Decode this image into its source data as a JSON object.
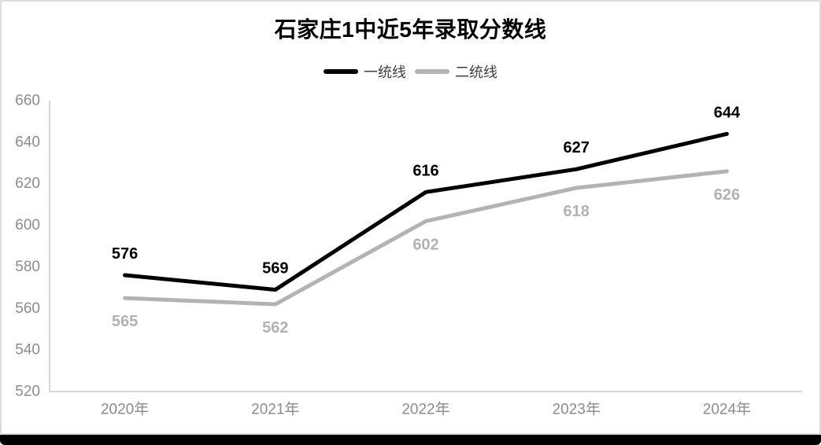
{
  "window": {
    "card_border_color": "#dcdcdc",
    "bottom_bar_color": "#000000",
    "background_color": "#ffffff"
  },
  "chart": {
    "title": "石家庄1中近5年录取分数线",
    "legend": {
      "items": [
        {
          "label": "一统线",
          "color": "#000000"
        },
        {
          "label": "二统线",
          "color": "#b3b3b3"
        }
      ]
    }
  },
  "chart_data": {
    "type": "line",
    "title": "石家庄1中近5年录取分数线",
    "categories": [
      "2020年",
      "2021年",
      "2022年",
      "2023年",
      "2024年"
    ],
    "series": [
      {
        "name": "一统线",
        "color": "#000000",
        "values": [
          576,
          569,
          616,
          627,
          644
        ],
        "label_color": "#000000",
        "label_position": "above"
      },
      {
        "name": "二统线",
        "color": "#b3b3b3",
        "values": [
          565,
          562,
          602,
          618,
          626
        ],
        "label_color": "#b2b2b2",
        "label_position": "below"
      }
    ],
    "ylim": [
      520,
      660
    ],
    "yticks": [
      520,
      540,
      560,
      580,
      600,
      620,
      640,
      660
    ],
    "grid": false,
    "data_labels": true,
    "drop_lines": true,
    "legend_position": "top",
    "axis_color": "#d6d6d6",
    "tick_label_color": "#8c8c8c",
    "drop_line_color_top": "#949494",
    "drop_line_color_bottom": "#dadada"
  }
}
